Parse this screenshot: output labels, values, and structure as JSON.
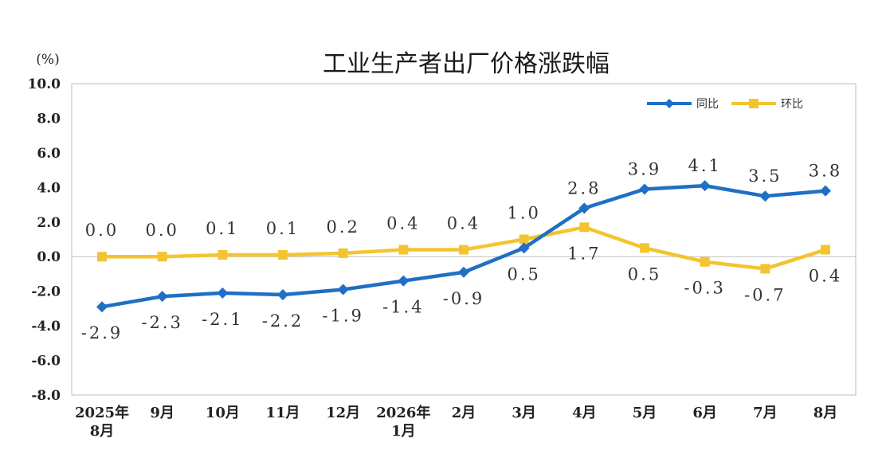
{
  "chart_data": {
    "type": "line",
    "title": "工业生产者出厂价格涨跌幅",
    "unit": "(%)",
    "categories": [
      [
        "2025年",
        "8月"
      ],
      [
        "9月"
      ],
      [
        "10月"
      ],
      [
        "11月"
      ],
      [
        "12月"
      ],
      [
        "2026年",
        "1月"
      ],
      [
        "2月"
      ],
      [
        "3月"
      ],
      [
        "4月"
      ],
      [
        "5月"
      ],
      [
        "6月"
      ],
      [
        "7月"
      ],
      [
        "8月"
      ]
    ],
    "ylim": [
      -8.0,
      10.0
    ],
    "yticks": [
      "10.0",
      "8.0",
      "6.0",
      "4.0",
      "2.0",
      "0.0",
      "-2.0",
      "-4.0",
      "-6.0",
      "-8.0"
    ],
    "legend_position": "top-right",
    "series": [
      {
        "name": "同比",
        "color": "#1f6fc5",
        "marker": "diamond",
        "values": [
          -2.9,
          -2.3,
          -2.1,
          -2.2,
          -1.9,
          -1.4,
          -0.9,
          0.5,
          2.8,
          3.9,
          4.1,
          3.5,
          3.8
        ],
        "labels": [
          "-2.9",
          "-2.3",
          "-2.1",
          "-2.2",
          "-1.9",
          "-1.4",
          "-0.9",
          "0.5",
          "2.8",
          "3.9",
          "4.1",
          "3.5",
          "3.8"
        ]
      },
      {
        "name": "环比",
        "color": "#f4c430",
        "marker": "square",
        "values": [
          0.0,
          0.0,
          0.1,
          0.1,
          0.2,
          0.4,
          0.4,
          1.0,
          1.7,
          0.5,
          -0.3,
          -0.7,
          0.4
        ],
        "labels": [
          "0.0",
          "0.0",
          "0.1",
          "0.1",
          "0.2",
          "0.4",
          "0.4",
          "1.0",
          "1.7",
          "0.5",
          "-0.3",
          "-0.7",
          "0.4"
        ]
      }
    ]
  }
}
